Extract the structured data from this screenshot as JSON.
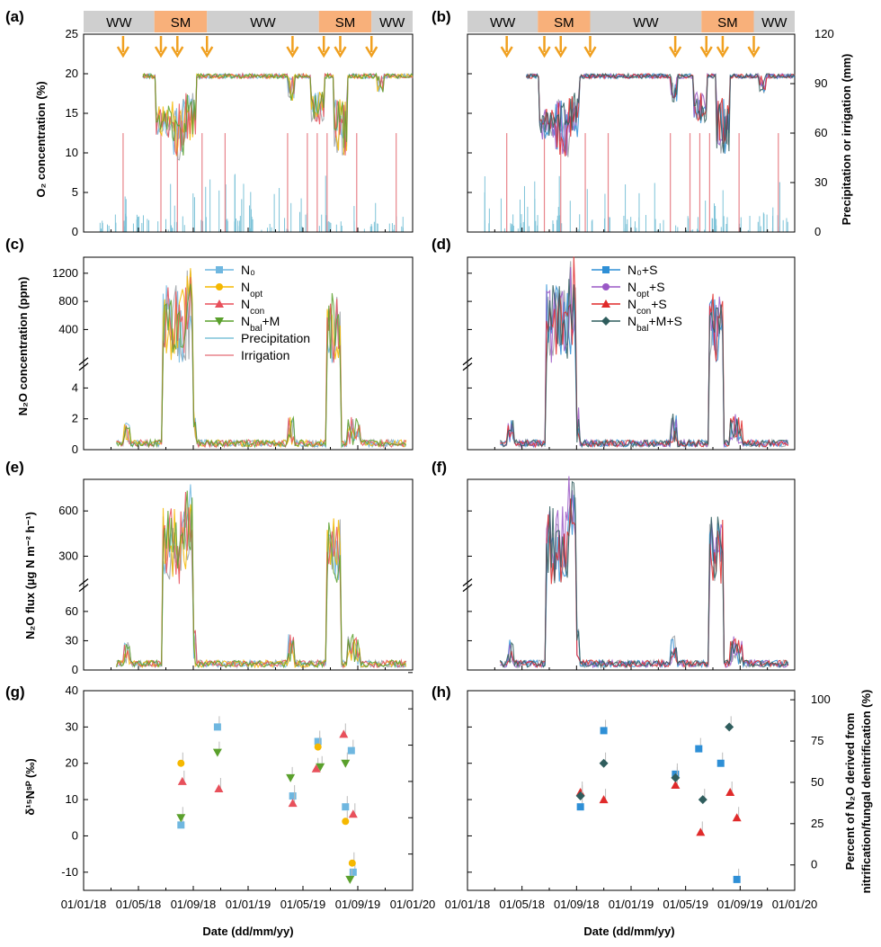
{
  "figure": {
    "panel_labels": [
      "(a)",
      "(b)",
      "(c)",
      "(d)",
      "(e)",
      "(f)",
      "(g)",
      "(h)"
    ],
    "xlabel": "Date (dd/mm/yy)",
    "x_tick_labels": [
      "01/01/18",
      "01/05/18",
      "01/09/18",
      "01/01/19",
      "01/05/19",
      "01/09/19",
      "01/01/20"
    ],
    "y_left_a": "O₂ concentration (%)",
    "y_right_ab": "Precipitation or irrigation (mm)",
    "y_left_c": "N₂O concentration (ppm)",
    "y_left_e": "N₂O flux (µg N m⁻² h⁻¹)",
    "y_left_g": "δ¹⁵Nˢᴾ (‰)",
    "y_right_h_line1": "Percent of N₂O derived from",
    "y_right_h_line2": "nitrification/fungal denitrification (%)"
  },
  "seasons": [
    {
      "label": "WW",
      "start": 0.0,
      "end": 0.215,
      "color": "#cfcfcf"
    },
    {
      "label": "SM",
      "start": 0.215,
      "end": 0.375,
      "color": "#f8b07a"
    },
    {
      "label": "WW",
      "start": 0.375,
      "end": 0.715,
      "color": "#cfcfcf"
    },
    {
      "label": "SM",
      "start": 0.715,
      "end": 0.875,
      "color": "#f8b07a"
    },
    {
      "label": "WW",
      "start": 0.875,
      "end": 1.0,
      "color": "#cfcfcf"
    }
  ],
  "legend_left": [
    {
      "label": "N₀",
      "color": "#6fb7e0",
      "marker": "square"
    },
    {
      "label": "N_opt",
      "color": "#f5b800",
      "marker": "circle"
    },
    {
      "label": "N_con",
      "color": "#e8505b",
      "marker": "triangle"
    },
    {
      "label": "N_bal+M",
      "color": "#5aa02c",
      "marker": "triangle-down"
    },
    {
      "label": "Precipitation",
      "color": "#7ec3d8",
      "marker": "line"
    },
    {
      "label": "Irrigation",
      "color": "#e8848b",
      "marker": "line"
    }
  ],
  "legend_right": [
    {
      "label": "N₀+S",
      "color": "#2e8fd6",
      "marker": "square"
    },
    {
      "label": "N_opt+S",
      "color": "#9a58c6",
      "marker": "circle"
    },
    {
      "label": "N_con+S",
      "color": "#e02a2a",
      "marker": "triangle"
    },
    {
      "label": "N_bal+M+S",
      "color": "#2f5d5d",
      "marker": "diamond"
    }
  ],
  "chart_data": [
    {
      "panel": "(a)",
      "type": "line",
      "x_range": [
        "2018-01-01",
        "2020-01-01"
      ],
      "ylim": [
        0,
        25
      ],
      "yticks": [
        0,
        5,
        10,
        15,
        20,
        25
      ],
      "y2lim": [
        0,
        120
      ],
      "y2ticks": [
        0,
        30,
        60,
        90,
        120
      ],
      "ylabel": "O₂ concentration (%)",
      "y2label": "Precipitation or irrigation (mm)",
      "series": [
        {
          "name": "N₀",
          "x": [
            "2018-05-10",
            "2018-06-20",
            "2018-07-10",
            "2018-07-25",
            "2018-09-01",
            "2019-01-01",
            "2019-05-01",
            "2019-07-15",
            "2019-08-10",
            "2019-09-05",
            "2019-12-31"
          ],
          "values": [
            20.0,
            15.0,
            13.0,
            15.0,
            19.5,
            19.8,
            19.5,
            15.0,
            12.0,
            19.5,
            19.5
          ]
        },
        {
          "name": "N_con",
          "x": [
            "2018-05-10",
            "2018-06-20",
            "2018-07-10",
            "2018-07-25",
            "2018-09-01",
            "2019-01-01",
            "2019-05-01",
            "2019-07-15",
            "2019-08-10",
            "2019-09-05",
            "2019-12-31"
          ],
          "values": [
            20.2,
            16.0,
            11.0,
            14.0,
            19.8,
            20.0,
            19.8,
            16.0,
            11.0,
            20.0,
            19.8
          ]
        }
      ]
    },
    {
      "panel": "(c)",
      "type": "line",
      "ylabel": "N₂O concentration (ppm)",
      "yticks_lower": [
        0,
        2,
        4
      ],
      "yticks_upper": [
        400,
        800,
        1200
      ],
      "series": [
        {
          "name": "N_con",
          "x": [
            "2018-03-20",
            "2018-04-05",
            "2018-06-15",
            "2018-07-05",
            "2018-07-15",
            "2018-09-20",
            "2019-04-05",
            "2019-06-20",
            "2019-07-25",
            "2019-09-20",
            "2019-12-20"
          ],
          "values": [
            0.3,
            2.0,
            1.5,
            800,
            400,
            2.3,
            2.5,
            1.5,
            250,
            2.5,
            0.5
          ]
        }
      ]
    },
    {
      "panel": "(e)",
      "type": "line",
      "ylabel": "N₂O flux (µg N m⁻² h⁻¹)",
      "yticks_lower": [
        0,
        30,
        60
      ],
      "yticks_upper": [
        300,
        600
      ],
      "series": [
        {
          "name": "N_con",
          "x": [
            "2018-02-01",
            "2018-05-10",
            "2018-06-15",
            "2018-07-10",
            "2018-09-20",
            "2019-04-05",
            "2019-06-20",
            "2019-07-25",
            "2019-09-25",
            "2019-12-20"
          ],
          "values": [
            5,
            25,
            30,
            430,
            20,
            20,
            60,
            380,
            60,
            5
          ]
        }
      ]
    },
    {
      "panel": "(g)",
      "type": "scatter",
      "ylim": [
        -15,
        40
      ],
      "yticks": [
        -10,
        0,
        10,
        20,
        30,
        40
      ],
      "ylabel": "δ¹⁵Nˢᴾ (‰)",
      "series": [
        {
          "name": "N₀",
          "x": [
            "2018-08-05",
            "2018-10-25",
            "2019-04-10",
            "2019-06-05",
            "2019-08-05",
            "2019-08-18",
            "2019-08-22"
          ],
          "values": [
            3,
            30,
            11,
            26,
            8,
            23.5,
            -10
          ]
        },
        {
          "name": "N_opt",
          "x": [
            "2018-08-05",
            "2019-06-05",
            "2019-08-05",
            "2019-08-20"
          ],
          "values": [
            20,
            24.5,
            4,
            -7.5
          ]
        },
        {
          "name": "N_con",
          "x": [
            "2018-08-08",
            "2018-10-28",
            "2019-04-10",
            "2019-06-01",
            "2019-08-01",
            "2019-08-22"
          ],
          "values": [
            15,
            13,
            9,
            18.5,
            28,
            6
          ]
        },
        {
          "name": "N_bal+M",
          "x": [
            "2018-08-05",
            "2018-10-25",
            "2019-04-05",
            "2019-06-10",
            "2019-08-05",
            "2019-08-15"
          ],
          "values": [
            5,
            23,
            16,
            19,
            20,
            -12
          ]
        }
      ]
    },
    {
      "panel": "(h)",
      "type": "scatter",
      "ylim": [
        -15,
        40
      ],
      "yticks": [
        -10,
        0,
        10,
        20,
        30,
        40
      ],
      "y2label": "Percent of N₂O derived from nitrification/fungal denitrification (%)",
      "y2ticks": [
        0,
        25,
        50,
        75,
        100
      ],
      "series": [
        {
          "name": "N₀+S",
          "x": [
            "2018-09-10",
            "2018-11-01",
            "2019-04-10",
            "2019-06-01",
            "2019-07-20",
            "2019-08-25"
          ],
          "values": [
            8,
            29,
            17,
            24,
            20,
            -12
          ]
        },
        {
          "name": "N_con+S",
          "x": [
            "2018-09-10",
            "2018-11-01",
            "2019-04-10",
            "2019-06-05",
            "2019-08-10",
            "2019-08-25"
          ],
          "values": [
            12,
            10,
            14,
            1,
            12,
            5
          ]
        },
        {
          "name": "N_bal+M+S",
          "x": [
            "2018-09-10",
            "2018-11-01",
            "2019-04-10",
            "2019-06-10",
            "2019-08-08"
          ],
          "values": [
            11,
            20,
            16,
            10,
            30
          ]
        }
      ]
    }
  ]
}
